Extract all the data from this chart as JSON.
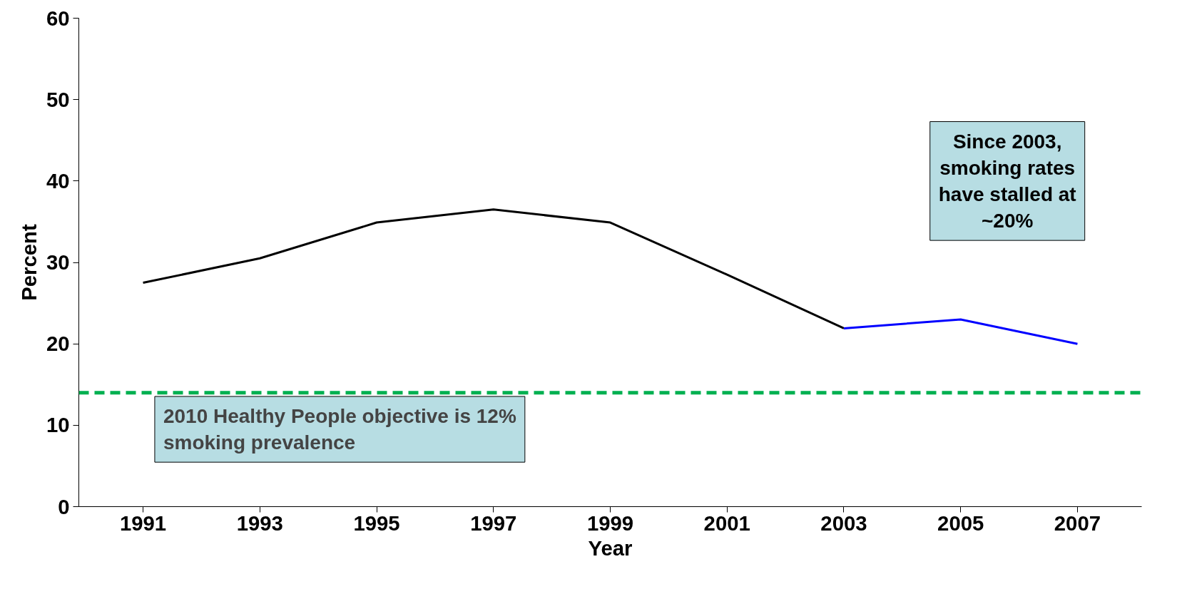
{
  "chart_data": {
    "type": "line",
    "xlabel": "Year",
    "ylabel": "Percent",
    "categories": [
      "1991",
      "1993",
      "1995",
      "1997",
      "1999",
      "2001",
      "2003",
      "2005",
      "2007"
    ],
    "series": [
      {
        "color": "#000000",
        "values": [
          27.5,
          30.5,
          34.9,
          36.5,
          34.9,
          28.5,
          21.9,
          null,
          null
        ]
      },
      {
        "color": "#0000ff",
        "values": [
          null,
          null,
          null,
          null,
          null,
          null,
          21.9,
          23.0,
          20.0
        ]
      }
    ],
    "ylim": [
      0,
      60
    ],
    "yticks": [
      0,
      10,
      20,
      30,
      40,
      50,
      60
    ],
    "grid": false,
    "marker": "none",
    "line_style": "solid",
    "ref_lines": [
      {
        "axis": "y",
        "value": 14,
        "label": "2010 Healthy People objective is 12% smoking prevalence",
        "color": "#00b050",
        "line_style": "dashed"
      }
    ],
    "annotations": [
      "Since 2003, smoking rates have stalled at ~20%"
    ]
  }
}
